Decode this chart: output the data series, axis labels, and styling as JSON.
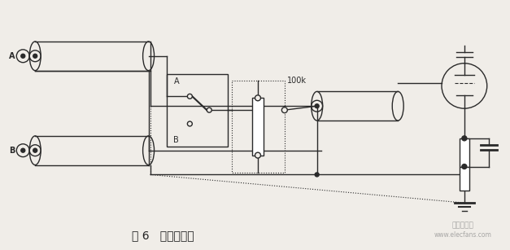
{
  "background_color": "#f0ede8",
  "title": "图 6   双芯屏蔽线",
  "title_fontsize": 10,
  "line_color": "#2a2a2a",
  "label_A": "A",
  "label_B": "B",
  "label_100k": "100k",
  "watermark_line1": "电子发烧友",
  "watermark_line2": "www.elecfans.com"
}
